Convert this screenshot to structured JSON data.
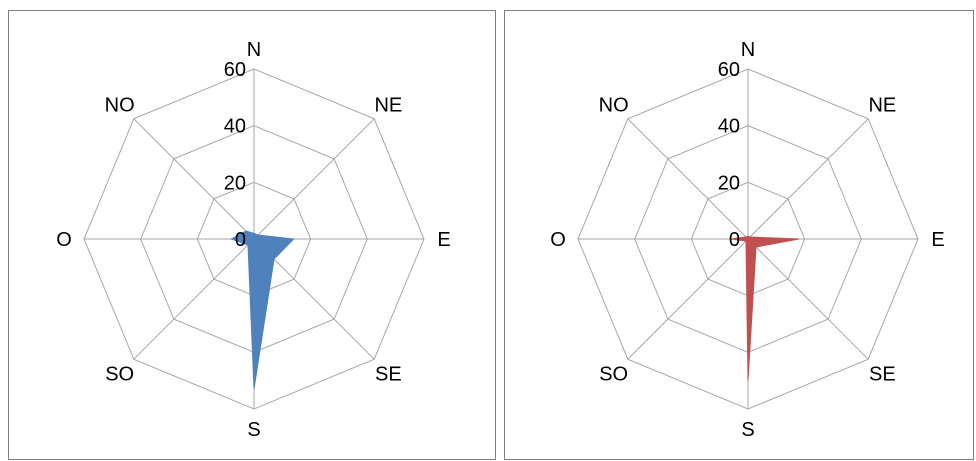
{
  "chart_data": [
    {
      "type": "radar",
      "categories": [
        "N",
        "NE",
        "E",
        "SE",
        "S",
        "SO",
        "O",
        "NO"
      ],
      "series": [
        {
          "values": [
            2,
            2,
            14,
            10,
            53,
            3,
            8,
            4
          ],
          "color": "#4f81bd"
        }
      ],
      "rlim": [
        0,
        60
      ],
      "rticks": [
        "0",
        "20",
        "40",
        "60"
      ],
      "grid": true,
      "legend": "none"
    },
    {
      "type": "radar",
      "categories": [
        "N",
        "NE",
        "E",
        "SE",
        "S",
        "SO",
        "O",
        "NO"
      ],
      "series": [
        {
          "values": [
            1,
            1,
            18,
            4,
            50,
            1,
            6,
            1
          ],
          "color": "#c0504d"
        }
      ],
      "rlim": [
        0,
        60
      ],
      "rticks": [
        "0",
        "20",
        "40",
        "60"
      ],
      "grid": true,
      "legend": "none"
    }
  ]
}
